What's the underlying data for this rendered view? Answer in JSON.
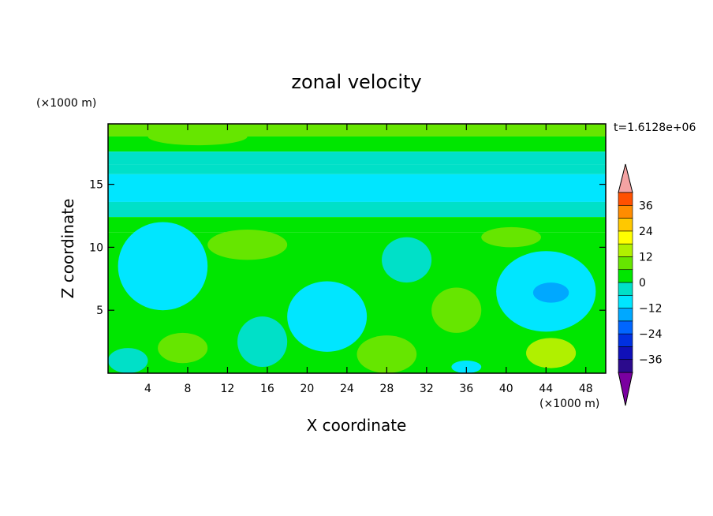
{
  "chart_data": {
    "type": "heatmap",
    "title": "zonal velocity",
    "xlabel": "X coordinate",
    "ylabel": "Z coordinate",
    "x_unit": "(×1000 m)",
    "y_unit": "(×1000 m)",
    "time_label": "t=1.6128e+06",
    "xlim": [
      0,
      50
    ],
    "ylim": [
      0,
      19.8
    ],
    "x_ticks": [
      4,
      8,
      12,
      16,
      20,
      24,
      28,
      32,
      36,
      40,
      44,
      48
    ],
    "y_ticks": [
      5,
      10,
      15
    ],
    "z_levels": [
      -42,
      -36,
      -30,
      -24,
      -18,
      -12,
      -6,
      0,
      6,
      12,
      18,
      24,
      30,
      36,
      42
    ],
    "colorbar_ticks": [
      36,
      24,
      12,
      0,
      -12,
      -24,
      -36
    ],
    "colors": [
      "#7a00a0",
      "#2b0a8c",
      "#1010b8",
      "#0030e0",
      "#0066ff",
      "#00a8ff",
      "#00e6ff",
      "#00e0c8",
      "#00e600",
      "#66e600",
      "#b0f000",
      "#ffff00",
      "#ffc800",
      "#ff8c00",
      "#ff5000",
      "#f01e00",
      "#f4a3a3"
    ],
    "field_bands": [
      {
        "zmin": 18.8,
        "zmax": 19.8,
        "u": 8
      },
      {
        "zmin": 17.6,
        "zmax": 18.8,
        "u": 3
      },
      {
        "zmin": 16.6,
        "zmax": 17.6,
        "u": -2
      },
      {
        "zmin": 15.8,
        "zmax": 16.6,
        "u": -6
      },
      {
        "zmin": 13.6,
        "zmax": 15.8,
        "u": -10
      },
      {
        "zmin": 12.4,
        "zmax": 13.6,
        "u": -4
      },
      {
        "zmin": 11.2,
        "zmax": 12.4,
        "u": 2
      },
      {
        "zmin": 0,
        "zmax": 11.2,
        "u": 4
      }
    ],
    "field_blobs": [
      {
        "x": 5.5,
        "z": 8.5,
        "rx": 4.5,
        "rz": 3.5,
        "u": -8
      },
      {
        "x": 6.0,
        "z": 8.0,
        "rx": 3.0,
        "rz": 2.3,
        "u": -12
      },
      {
        "x": 22,
        "z": 4.5,
        "rx": 4.0,
        "rz": 2.8,
        "u": -8
      },
      {
        "x": 44,
        "z": 6.5,
        "rx": 5.0,
        "rz": 3.2,
        "u": -8
      },
      {
        "x": 44.5,
        "z": 6.5,
        "rx": 3.2,
        "rz": 2.0,
        "u": -12
      },
      {
        "x": 44.5,
        "z": 6.4,
        "rx": 1.8,
        "rz": 0.8,
        "u": -16
      },
      {
        "x": 15.5,
        "z": 2.5,
        "rx": 2.5,
        "rz": 2.0,
        "u": -4
      },
      {
        "x": 30,
        "z": 9.0,
        "rx": 2.5,
        "rz": 1.8,
        "u": -6
      },
      {
        "x": 28,
        "z": 1.5,
        "rx": 3.0,
        "rz": 1.5,
        "u": 9
      },
      {
        "x": 35,
        "z": 5.0,
        "rx": 2.5,
        "rz": 1.8,
        "u": 10
      },
      {
        "x": 44.5,
        "z": 1.6,
        "rx": 2.5,
        "rz": 1.2,
        "u": 12
      },
      {
        "x": 7.5,
        "z": 2.0,
        "rx": 2.5,
        "rz": 1.2,
        "u": 10
      },
      {
        "x": 14,
        "z": 10.2,
        "rx": 4.0,
        "rz": 1.2,
        "u": 9
      },
      {
        "x": 40.5,
        "z": 10.8,
        "rx": 3.0,
        "rz": 0.8,
        "u": 10
      },
      {
        "x": 9,
        "z": 18.8,
        "rx": 5.0,
        "rz": 0.7,
        "u": 10
      },
      {
        "x": 36,
        "z": 0.5,
        "rx": 1.5,
        "rz": 0.5,
        "u": -12
      },
      {
        "x": 2,
        "z": 1.0,
        "rx": 2.0,
        "rz": 1.0,
        "u": -6
      }
    ]
  }
}
